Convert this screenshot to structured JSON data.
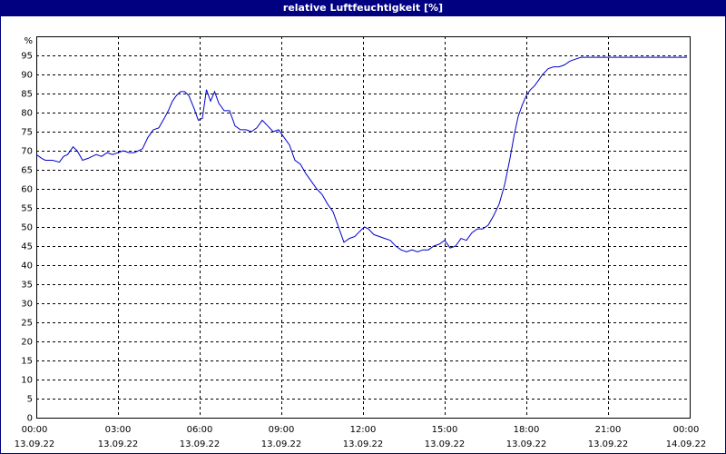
{
  "window": {
    "title": "relative Luftfeuchtigkeit [%]"
  },
  "colors": {
    "titlebar": "#000080",
    "line": "#0000cc",
    "grid": "#000000",
    "background": "#ffffff"
  },
  "chart_data": {
    "type": "line",
    "title": "relative Luftfeuchtigkeit [%]",
    "ylabel": "%",
    "xlabel": "",
    "ylim": [
      0,
      100
    ],
    "yticks": [
      0,
      5,
      10,
      15,
      20,
      25,
      30,
      35,
      40,
      45,
      50,
      55,
      60,
      65,
      70,
      75,
      80,
      85,
      90,
      95
    ],
    "y_unit_label": "%",
    "xlim": [
      0,
      24
    ],
    "xticks": [
      {
        "x": 0,
        "time": "00:00",
        "date": "13.09.22"
      },
      {
        "x": 3,
        "time": "03:00",
        "date": "13.09.22"
      },
      {
        "x": 6,
        "time": "06:00",
        "date": "13.09.22"
      },
      {
        "x": 9,
        "time": "09:00",
        "date": "13.09.22"
      },
      {
        "x": 12,
        "time": "12:00",
        "date": "13.09.22"
      },
      {
        "x": 15,
        "time": "15:00",
        "date": "13.09.22"
      },
      {
        "x": 18,
        "time": "18:00",
        "date": "13.09.22"
      },
      {
        "x": 21,
        "time": "21:00",
        "date": "13.09.22"
      },
      {
        "x": 24,
        "time": "00:00",
        "date": "14.09.22"
      }
    ],
    "grid": true,
    "series": [
      {
        "x": [
          0.0,
          0.2,
          0.33,
          0.6,
          0.85,
          1.0,
          1.15,
          1.35,
          1.5,
          1.7,
          1.9,
          2.05,
          2.2,
          2.4,
          2.6,
          2.8,
          3.0,
          3.2,
          3.4,
          3.6,
          3.9,
          4.1,
          4.3,
          4.5,
          4.7,
          4.85,
          5.0,
          5.15,
          5.3,
          5.45,
          5.6,
          5.8,
          5.95,
          6.1,
          6.25,
          6.4,
          6.55,
          6.7,
          6.9,
          7.1,
          7.3,
          7.5,
          7.7,
          7.9,
          8.1,
          8.3,
          8.5,
          8.7,
          8.9,
          9.1,
          9.3,
          9.5,
          9.7,
          9.9,
          10.1,
          10.3,
          10.5,
          10.7,
          10.9,
          11.1,
          11.3,
          11.5,
          11.7,
          11.9,
          12.05,
          12.2,
          12.4,
          12.6,
          12.8,
          13.0,
          13.2,
          13.4,
          13.6,
          13.8,
          14.0,
          14.2,
          14.4,
          14.6,
          14.8,
          15.0,
          15.2,
          15.4,
          15.6,
          15.8,
          16.0,
          16.2,
          16.4,
          16.6,
          16.8,
          17.0,
          17.2,
          17.4,
          17.55,
          17.7,
          17.85,
          18.0,
          18.15,
          18.3,
          18.45,
          18.6,
          18.8,
          19.0,
          19.2,
          19.4,
          19.6,
          19.8,
          20.0,
          20.2,
          20.4,
          20.6,
          20.8,
          21.0,
          21.5,
          22.0,
          22.5,
          23.0,
          23.5,
          23.9
        ],
        "values": [
          69.0,
          68.0,
          67.5,
          67.5,
          67.0,
          68.5,
          69.0,
          71.0,
          70.0,
          67.5,
          68.0,
          68.5,
          69.0,
          68.5,
          69.5,
          69.0,
          69.5,
          70.0,
          69.5,
          69.5,
          70.5,
          73.5,
          75.5,
          76.0,
          78.5,
          80.5,
          83.0,
          84.5,
          85.5,
          85.5,
          84.5,
          81.0,
          78.0,
          78.5,
          86.0,
          83.0,
          85.5,
          82.5,
          80.5,
          80.5,
          76.5,
          75.5,
          75.5,
          75.0,
          76.0,
          78.0,
          76.5,
          75.0,
          75.5,
          73.5,
          71.5,
          67.5,
          66.5,
          64.0,
          62.0,
          60.0,
          58.5,
          56.0,
          54.0,
          50.0,
          46.0,
          47.0,
          47.5,
          49.0,
          50.0,
          49.5,
          48.0,
          47.5,
          47.0,
          46.5,
          45.0,
          44.0,
          43.5,
          44.0,
          43.5,
          44.0,
          44.0,
          45.0,
          45.5,
          46.5,
          44.5,
          45.0,
          47.0,
          46.5,
          48.5,
          49.5,
          49.5,
          50.5,
          53.0,
          56.0,
          61.0,
          68.0,
          74.0,
          79.0,
          82.0,
          84.5,
          86.0,
          87.0,
          88.5,
          90.0,
          91.5,
          92.0,
          92.0,
          92.5,
          93.5,
          94.0,
          94.5,
          94.5,
          94.5,
          94.5,
          94.5,
          94.5,
          94.5,
          94.5,
          94.5,
          94.5,
          94.5,
          94.5
        ]
      }
    ]
  }
}
